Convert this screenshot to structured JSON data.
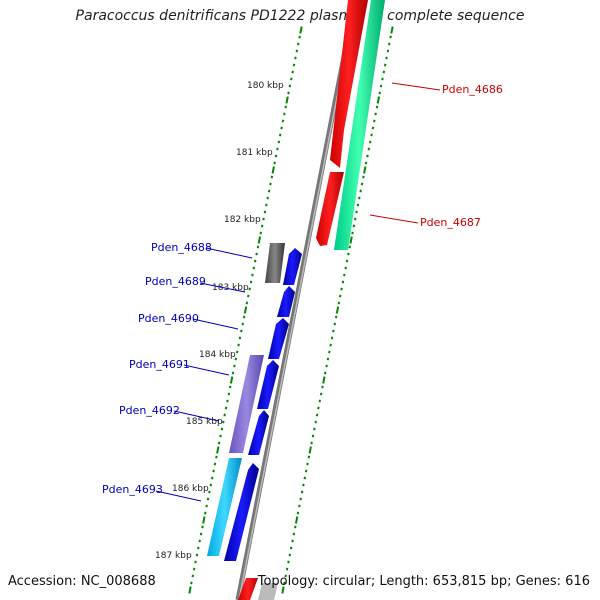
{
  "title": "Paracoccus denitrificans PD1222 plasmid 1, complete sequence",
  "footer": {
    "accession": "Accession: NC_008688",
    "topology": "Topology: circular; Length: 653,815 bp; Genes: 616"
  },
  "ticks": [
    "180 kbp",
    "181 kbp",
    "182 kbp",
    "183 kbp",
    "184 kbp",
    "185 kbp",
    "186 kbp",
    "187 kbp"
  ],
  "genes_right": [
    "Pden_4686",
    "Pden_4687"
  ],
  "genes_left": [
    "Pden_4688",
    "Pden_4689",
    "Pden_4690",
    "Pden_4691",
    "Pden_4692",
    "Pden_4693"
  ],
  "colors": {
    "forward_cds": "#ff0000",
    "reverse_cds": "#0000ee",
    "forward_label": "#cc0000",
    "reverse_label": "#0000bb",
    "tick_green": "#008800",
    "backbone": "#888888"
  }
}
